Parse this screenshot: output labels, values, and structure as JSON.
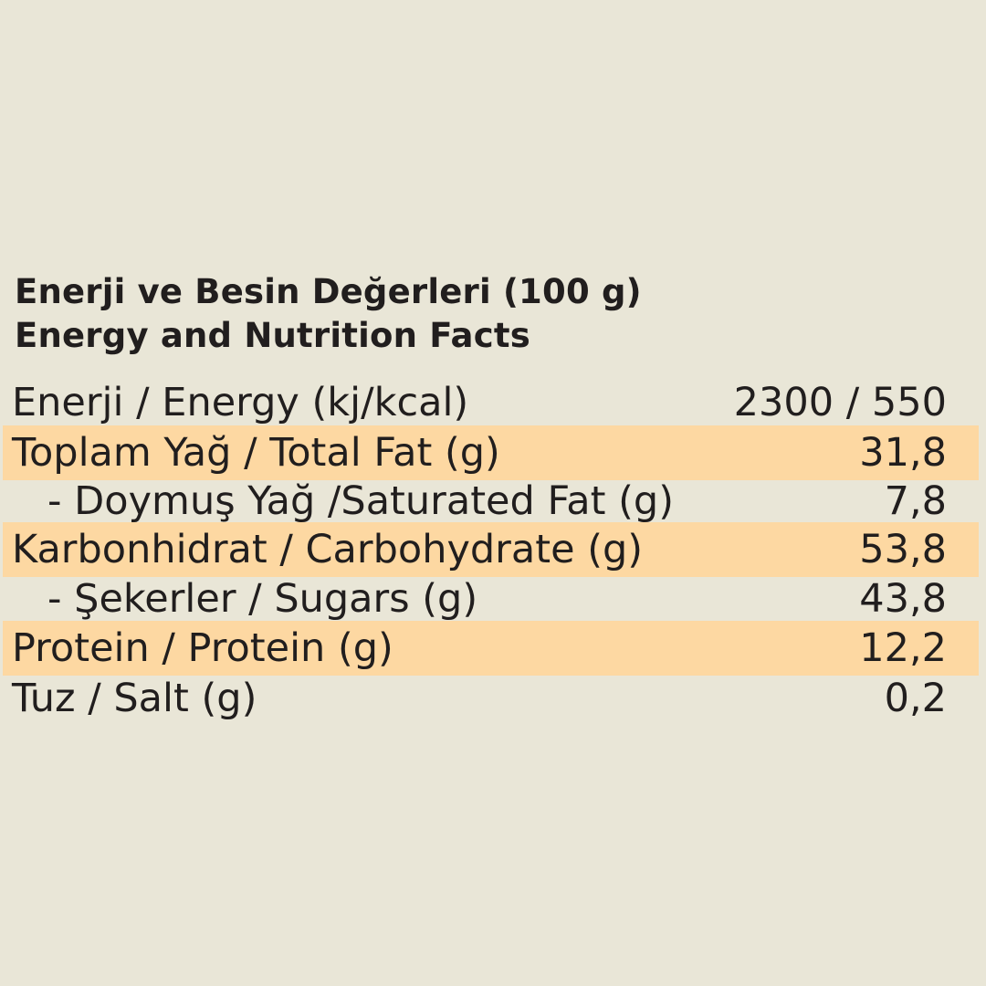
{
  "page": {
    "background_color": "#e9e6d7",
    "highlight_color": "#fdd8a2",
    "text_color": "#211e1e"
  },
  "title": {
    "line1": "Enerji ve Besin Değerleri (100 g)",
    "line2": "Energy and Nutrition Facts"
  },
  "table": {
    "rows": [
      {
        "label": "Enerji / Energy (kj/kcal)",
        "value": "2300 / 550",
        "highlight": false,
        "indent": false
      },
      {
        "label": "Toplam Yağ / Total Fat (g)",
        "value": "31,8",
        "highlight": true,
        "indent": false
      },
      {
        "label": "- Doymuş Yağ /Saturated Fat (g)",
        "value": "7,8",
        "highlight": false,
        "indent": true
      },
      {
        "label": "Karbonhidrat / Carbohydrate (g)",
        "value": "53,8",
        "highlight": true,
        "indent": false
      },
      {
        "label": "- Şekerler / Sugars (g)",
        "value": "43,8",
        "highlight": false,
        "indent": true
      },
      {
        "label": "Protein / Protein (g)",
        "value": "12,2",
        "highlight": true,
        "indent": false
      },
      {
        "label": "Tuz / Salt (g)",
        "value": "0,2",
        "highlight": false,
        "indent": false
      }
    ]
  }
}
